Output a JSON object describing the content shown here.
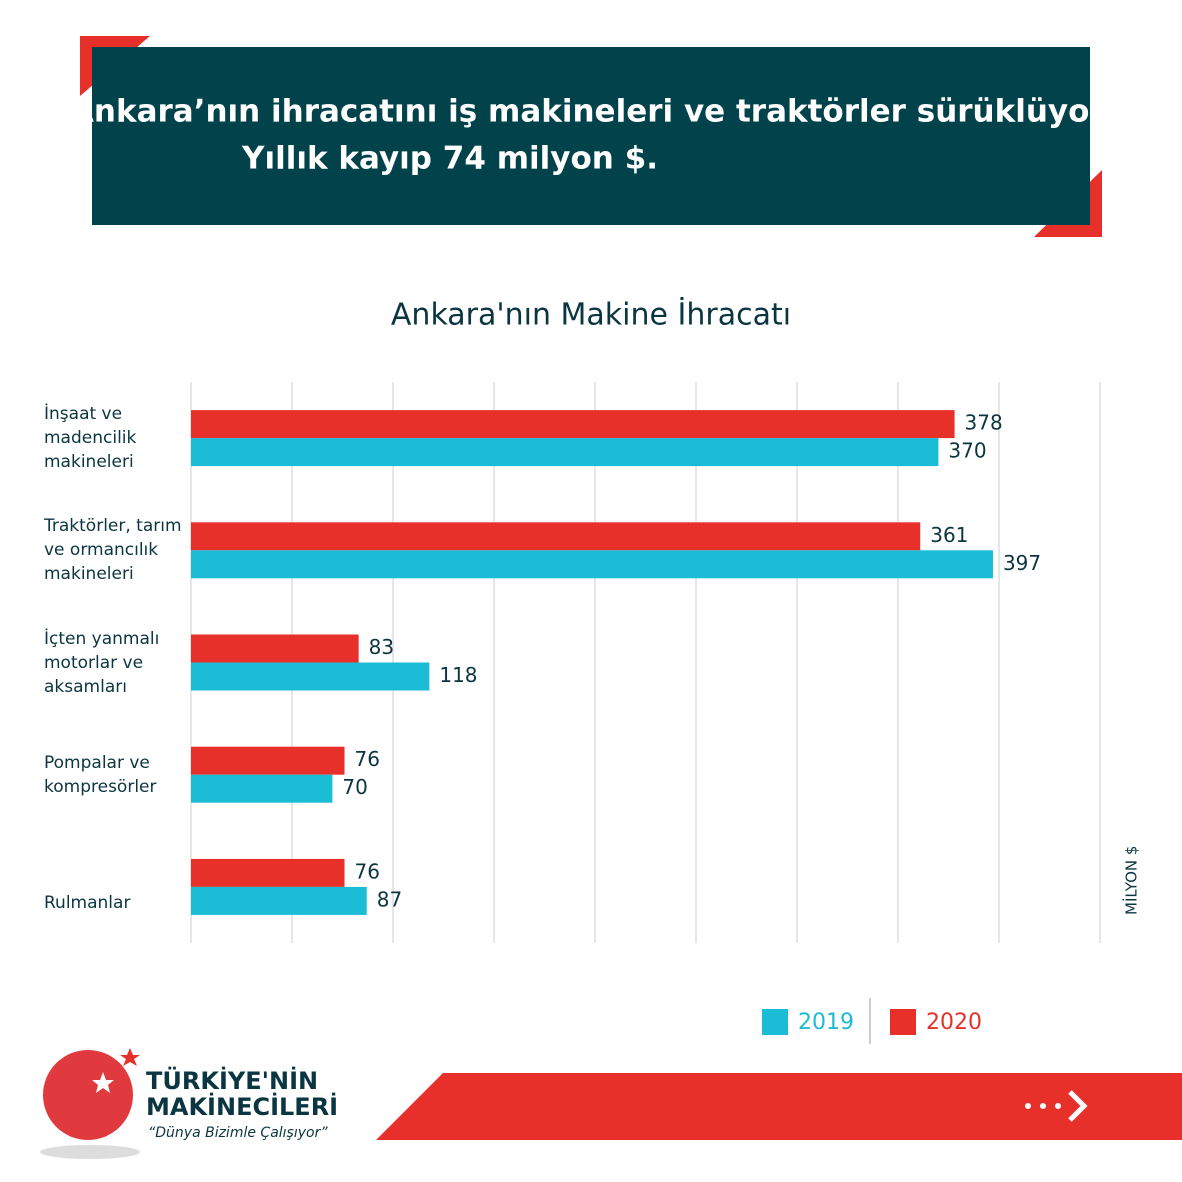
{
  "header": {
    "title_line1": "Ankara’nın ihracatını iş makineleri ve traktörler sürüklüyor.",
    "title_line2": "Yıllık kayıp 74 milyon $."
  },
  "chart_data": {
    "type": "bar",
    "orientation": "horizontal",
    "title": "Ankara'nın Makine İhracatı",
    "x_label": "MİLYON $",
    "categories": [
      "İnşaat ve\nmadencilik\nmakineleri",
      "Traktörler, tarım\nve ormancılık\nmakineleri",
      "İçten yanmalı\nmotorlar ve\naksamları",
      "Pompalar ve\nkompresörler",
      "Rulmanlar"
    ],
    "series": [
      {
        "name": "2019",
        "color": "#1bbcd6",
        "values": [
          370,
          397,
          118,
          70,
          87
        ]
      },
      {
        "name": "2020",
        "color": "#e8302a",
        "values": [
          378,
          361,
          83,
          76,
          76
        ]
      }
    ],
    "xlim": [
      0,
      450
    ],
    "xticks": [
      0,
      50,
      100,
      150,
      200,
      250,
      300,
      350,
      400,
      450
    ],
    "grid": true
  },
  "footer": {
    "brand_line1": "TÜRKİYE'NİN",
    "brand_line2": "MAKİNECİLERİ",
    "slogan": "“Dünya Bizimle Çalışıyor”"
  }
}
